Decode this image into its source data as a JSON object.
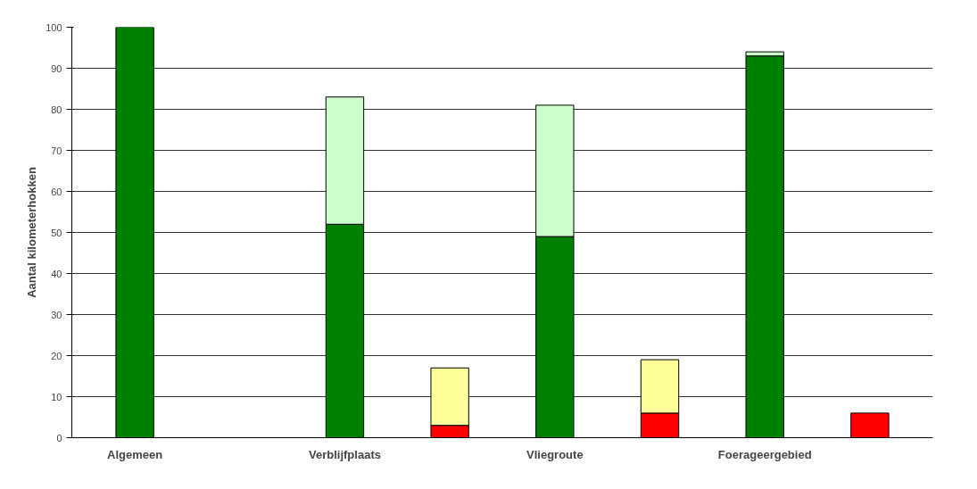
{
  "chart_data": {
    "type": "bar",
    "stacked": true,
    "ylabel": "Aantal kilometerhokken",
    "categories": [
      "Algemeen",
      null,
      "Verblijfplaats",
      null,
      "Vliegroute",
      null,
      "Foerageergebied",
      null
    ],
    "series": [
      {
        "color": "#008000",
        "values": [
          100,
          null,
          52,
          null,
          49,
          null,
          93,
          null
        ]
      },
      {
        "color": "#ccffcc",
        "values": [
          null,
          null,
          31,
          null,
          32,
          null,
          1,
          null
        ]
      },
      {
        "color": "#ff0000",
        "values": [
          null,
          null,
          null,
          3,
          null,
          6,
          null,
          6
        ]
      },
      {
        "color": "#ffff99",
        "values": [
          null,
          null,
          null,
          14,
          null,
          13,
          null,
          null
        ]
      }
    ],
    "ylim": [
      0,
      100
    ],
    "yticks": [
      0,
      10,
      20,
      30,
      40,
      50,
      60,
      70,
      80,
      90,
      100
    ],
    "grid": "y"
  }
}
